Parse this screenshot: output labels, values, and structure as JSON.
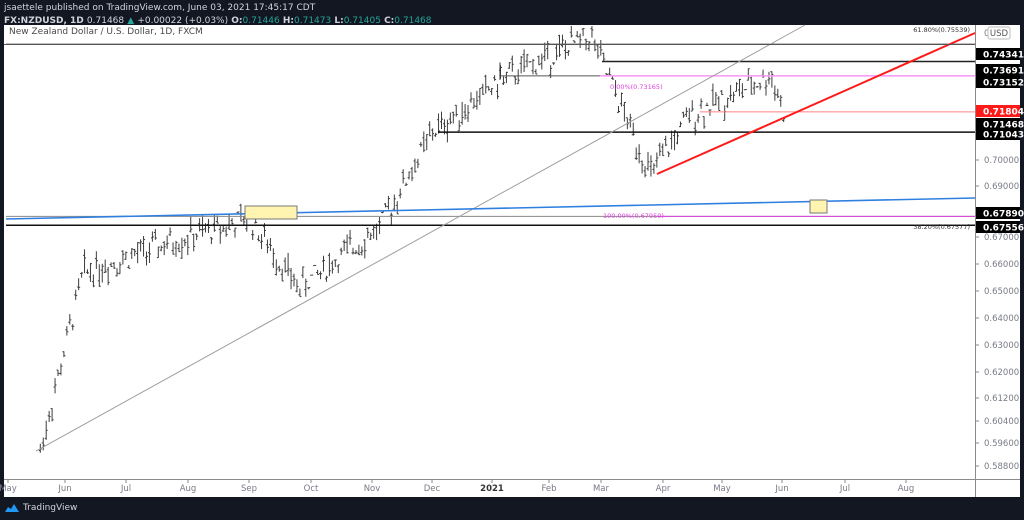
{
  "header": {
    "publisher_line": "jsaettele published on TradingView.com, June 03, 2021 17:45:17 CDT",
    "symbol": "FX:NZDUSD, 1D",
    "last": "0.71468",
    "change_arrow": "▲",
    "change": "+0.00022 (+0.03%)",
    "o_label": "O:",
    "o": "0.71446",
    "h_label": "H:",
    "h": "0.71473",
    "l_label": "L:",
    "l": "0.71405",
    "c_label": "C:",
    "c": "0.71468"
  },
  "chart_title": "New Zealand Dollar / U.S. Dollar, 1D, FXCM",
  "currency_label": "USD",
  "footer": {
    "brand": "TradingView"
  },
  "colors": {
    "background": "#131722",
    "plot": "#ffffff",
    "bars": "#3c3c3c",
    "red": "#ff1a1a",
    "blue": "#2f7fe0",
    "magenta": "#e040e0",
    "pink": "#ff99ff",
    "highlight": "#fff5b0"
  },
  "chart_data": {
    "type": "ohlc-bar",
    "title": "New Zealand Dollar / U.S. Dollar, 1D, FXCM",
    "xlabel": "",
    "ylabel": "USD",
    "ylim": [
      0.585,
      0.758
    ],
    "x_ticks": [
      "May",
      "Jun",
      "Jul",
      "Aug",
      "Sep",
      "Oct",
      "Nov",
      "Dec",
      "2021",
      "Feb",
      "Mar",
      "Apr",
      "May",
      "Jun",
      "Jul",
      "Aug"
    ],
    "y_ticks": [
      "0.70000",
      "0.69000",
      "0.67000",
      "0.66000",
      "0.65000",
      "0.64000",
      "0.63000",
      "0.62000",
      "0.61200",
      "0.60400",
      "0.59600",
      "0.58800"
    ],
    "price_labels": [
      {
        "value": "0.74341",
        "style": "black"
      },
      {
        "value": "0.73691",
        "style": "black"
      },
      {
        "value": "0.73152",
        "style": "black"
      },
      {
        "value": "0.71804",
        "style": "red"
      },
      {
        "value": "0.71468",
        "style": "black"
      },
      {
        "value": "0.71043",
        "style": "black"
      },
      {
        "value": "0.67890",
        "style": "black"
      },
      {
        "value": "0.67556",
        "style": "black"
      }
    ],
    "annotations": [
      {
        "text": "61.80%(0.75539)",
        "color": "#333333"
      },
      {
        "text": "0.00%(0.73165)",
        "color": "#e040e0"
      },
      {
        "text": "100.00%(0.67950)",
        "color": "#e040e0"
      },
      {
        "text": "38.20%(0.67577)",
        "color": "#333333"
      }
    ],
    "horizontal_levels": [
      0.74341,
      0.73691,
      0.73152,
      0.71804,
      0.71043,
      0.6789,
      0.67556
    ],
    "trendlines": [
      {
        "name": "red support",
        "from": [
          "2021-03-25",
          0.6945
        ],
        "to": [
          "2021-09-01",
          0.755
        ],
        "color": "#ff1a1a"
      },
      {
        "name": "blue long-term",
        "color": "#2f7fe0"
      },
      {
        "name": "grey channel",
        "from": [
          "2020-05-18",
          0.59
        ],
        "color": "#9e9e9e"
      }
    ],
    "series_summary": {
      "start": "2020-05",
      "end": "2021-06-03",
      "low": 0.591,
      "high": 0.7465,
      "last_close": 0.71468
    },
    "key_points": [
      {
        "date": "2020-05-18",
        "price": 0.591
      },
      {
        "date": "2020-06-10",
        "price": 0.658
      },
      {
        "date": "2020-07-31",
        "price": 0.671
      },
      {
        "date": "2020-09-01",
        "price": 0.678
      },
      {
        "date": "2020-09-25",
        "price": 0.652
      },
      {
        "date": "2020-11-05",
        "price": 0.675
      },
      {
        "date": "2020-12-01",
        "price": 0.71
      },
      {
        "date": "2021-01-06",
        "price": 0.73
      },
      {
        "date": "2021-02-25",
        "price": 0.7465
      },
      {
        "date": "2021-03-25",
        "price": 0.6945
      },
      {
        "date": "2021-04-15",
        "price": 0.717
      },
      {
        "date": "2021-05-26",
        "price": 0.7316
      },
      {
        "date": "2021-06-03",
        "price": 0.7147
      }
    ]
  }
}
